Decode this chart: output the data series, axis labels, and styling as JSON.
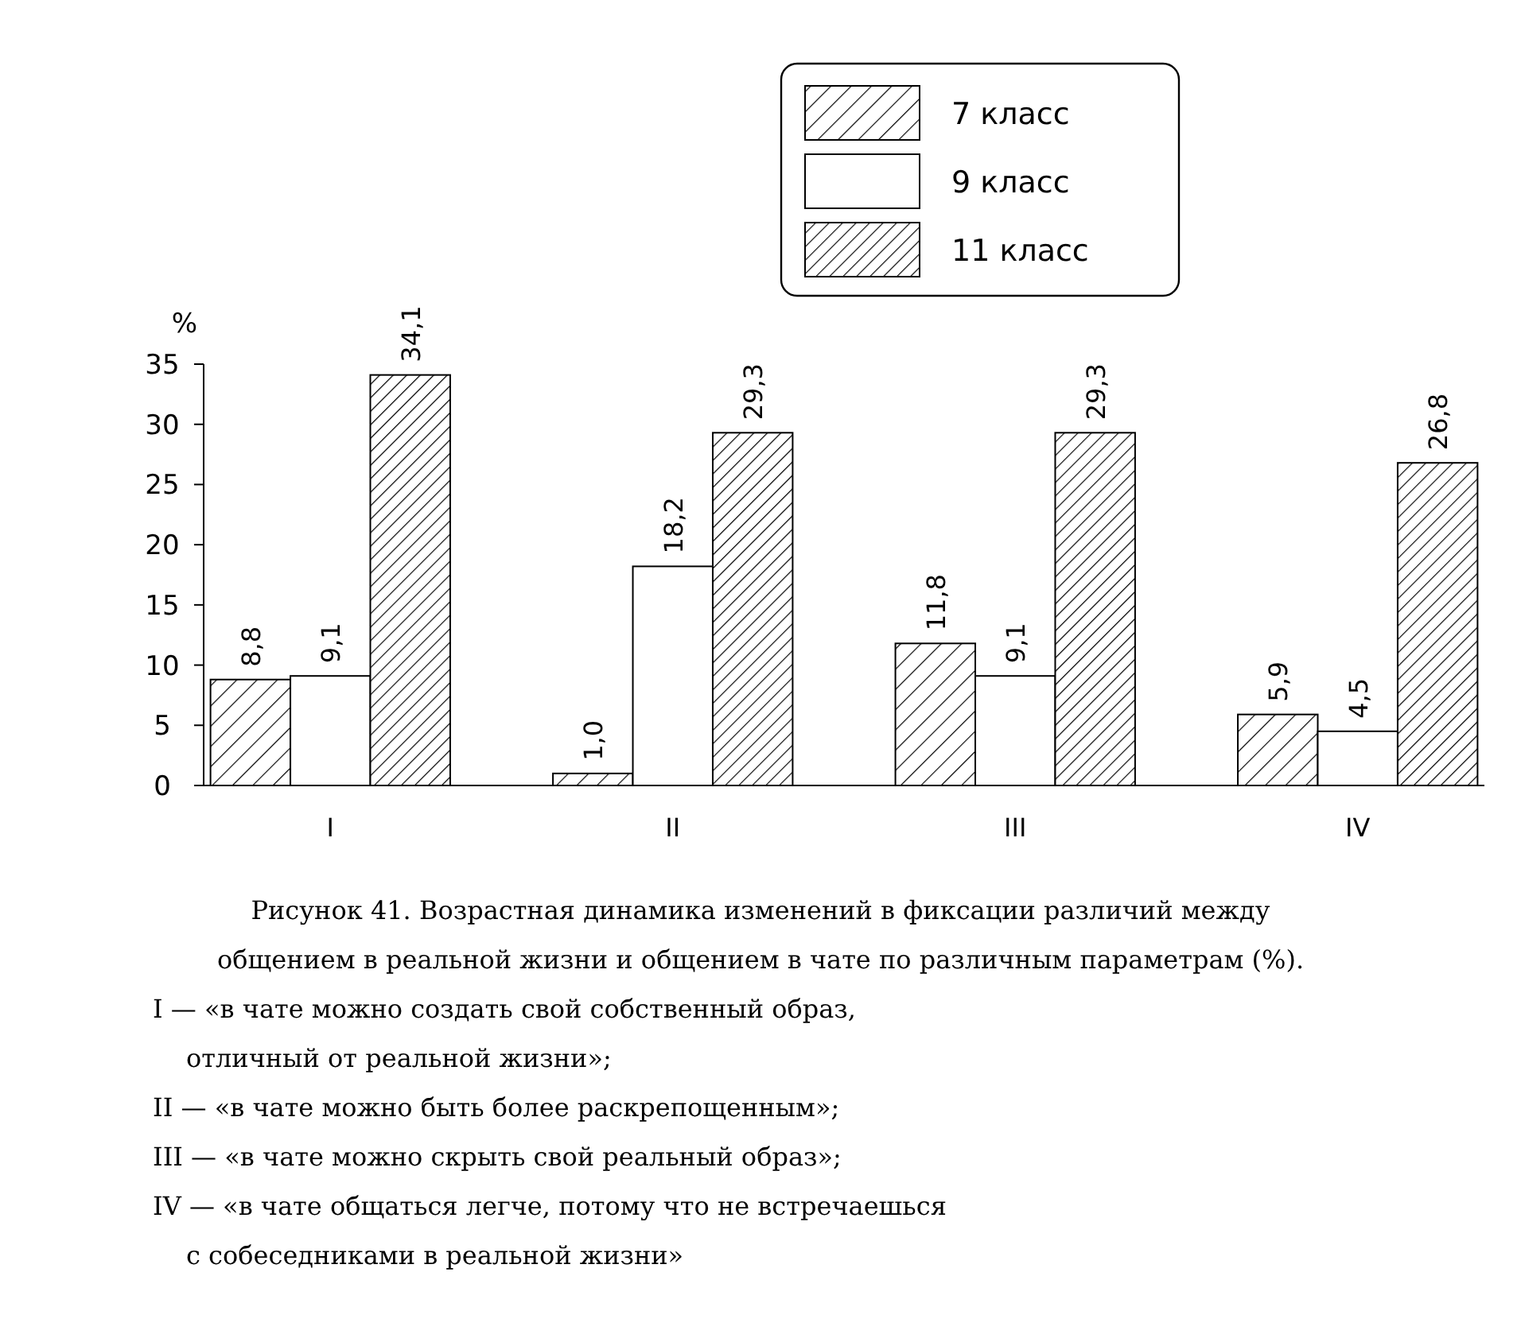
{
  "chart_data": {
    "type": "bar",
    "ylabel": "%",
    "categories": [
      "I",
      "II",
      "III",
      "IV"
    ],
    "series": [
      {
        "name": "7 класс",
        "color": "#000000",
        "values": [
          8.8,
          1.0,
          11.8,
          5.9
        ],
        "value_labels": [
          "8,8",
          "1,0",
          "11,8",
          "5,9"
        ]
      },
      {
        "name": "9 класс",
        "color": "#ffffff",
        "values": [
          9.1,
          18.2,
          9.1,
          4.5
        ],
        "value_labels": [
          "9,1",
          "18,2",
          "9,1",
          "4,5"
        ]
      },
      {
        "name": "11 класс",
        "color": "#000000",
        "values": [
          34.1,
          29.3,
          29.3,
          26.8
        ],
        "value_labels": [
          "34,1",
          "29,3",
          "29,3",
          "26,8"
        ]
      }
    ],
    "ylim": [
      0,
      35
    ],
    "yticks": [
      0,
      5,
      10,
      15,
      20,
      25,
      30,
      35
    ],
    "grid": false,
    "legend": "top right",
    "annotations": [
      "Рисунок 41. Возрастная динамика изменений в фиксации различий между общением в реальной жизни и общением в чате по различным параметрам (%).",
      "I — «в чате можно создать свой собственный образ, отличный от реальной жизни»;",
      "II — «в чате можно быть более раскрепощенным»;",
      "III — «в чате можно скрыть свой реальный образ»;",
      "IV — «в чате общаться легче, потому что не встречаешься с собеседниками в реальной жизни»"
    ]
  }
}
